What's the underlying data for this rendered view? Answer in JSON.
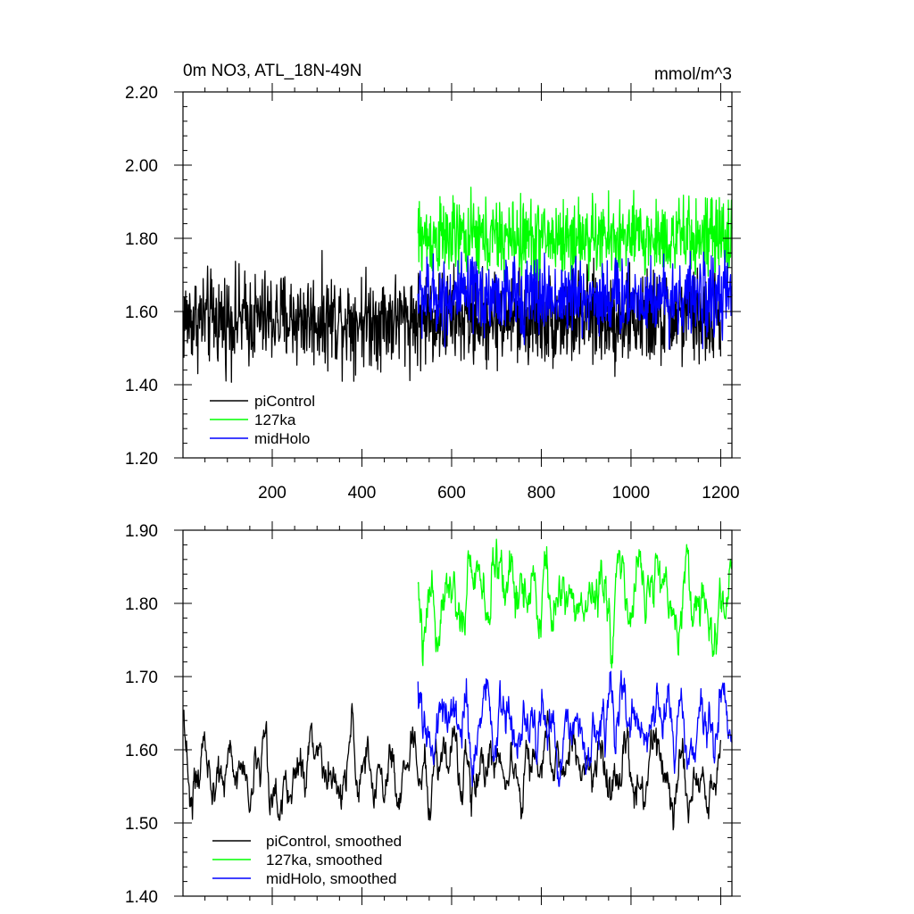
{
  "chart_data": [
    {
      "type": "line",
      "title": "0m NO3, ATL_18N-49N",
      "units": "mmol/m^3",
      "xlim": [
        1,
        1225
      ],
      "ylim": [
        1.2,
        2.2
      ],
      "x_ticks": [
        200,
        400,
        600,
        800,
        1000,
        1200
      ],
      "y_ticks": [
        "1.20",
        "1.40",
        "1.60",
        "1.80",
        "2.00",
        "2.20"
      ],
      "legend_position": "bottom-left",
      "series": [
        {
          "name": "piControl",
          "color": "#000000",
          "x_start": 1,
          "x_end": 1200,
          "mean": 1.58,
          "amp": 0.12,
          "min": 1.31,
          "max": 1.86
        },
        {
          "name": "127ka",
          "color": "#00ff00",
          "x_start": 525,
          "x_end": 1225,
          "mean": 1.8,
          "amp": 0.1,
          "min": 1.57,
          "max": 2.03
        },
        {
          "name": "midHolo",
          "color": "#0000ff",
          "x_start": 525,
          "x_end": 1225,
          "mean": 1.64,
          "amp": 0.1,
          "min": 1.43,
          "max": 1.84
        }
      ]
    },
    {
      "type": "line",
      "xlim": [
        1,
        1225
      ],
      "ylim": [
        1.4,
        1.9
      ],
      "y_ticks": [
        "1.40",
        "1.50",
        "1.60",
        "1.70",
        "1.80",
        "1.90"
      ],
      "legend_position": "bottom-left",
      "series": [
        {
          "name": "piControl, smoothed",
          "color": "#000000",
          "x_start": 1,
          "x_end": 1200,
          "mean": 1.575,
          "amp": 0.04,
          "min": 1.44,
          "max": 1.73
        },
        {
          "name": "127ka, smoothed",
          "color": "#00ff00",
          "x_start": 525,
          "x_end": 1225,
          "mean": 1.8,
          "amp": 0.04,
          "min": 1.66,
          "max": 1.9
        },
        {
          "name": "midHolo, smoothed",
          "color": "#0000ff",
          "x_start": 525,
          "x_end": 1225,
          "mean": 1.64,
          "amp": 0.045,
          "min": 1.55,
          "max": 1.78
        }
      ]
    }
  ]
}
